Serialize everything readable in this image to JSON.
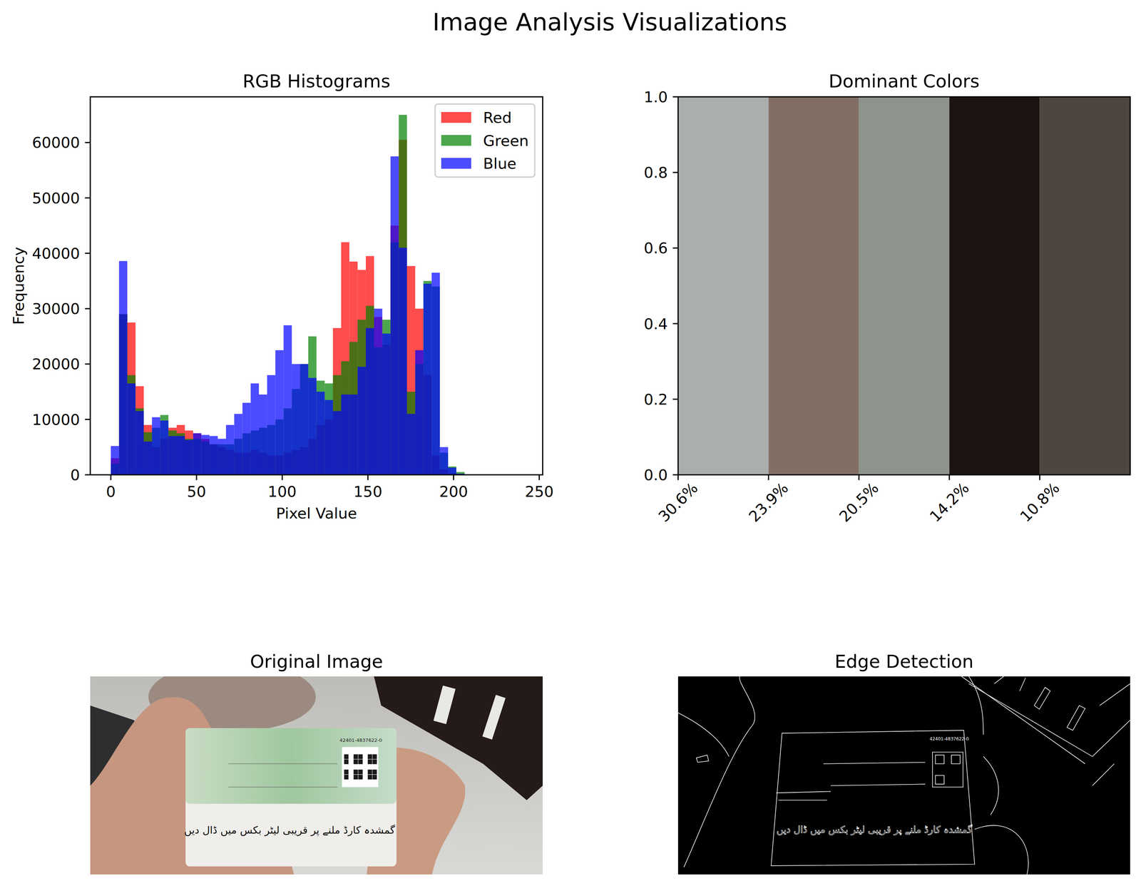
{
  "title": "Image Analysis Visualizations",
  "chart_data": [
    {
      "type": "histogram",
      "title": "RGB Histograms",
      "x_label": "Pixel Value",
      "y_label": "Frequency",
      "bins": [
        0,
        4.8,
        9.6,
        14.4,
        19.2,
        24,
        28.8,
        33.6,
        38.4,
        43.2,
        48,
        52.8,
        57.6,
        62.4,
        67.2,
        72,
        76.8,
        81.6,
        86.4,
        91.2,
        96,
        100.8,
        105.6,
        110.4,
        115.2,
        120,
        124.8,
        129.6,
        134.4,
        139.2,
        144,
        148.8,
        153.6,
        158.4,
        163.2,
        168,
        172.8,
        177.6,
        182.4,
        187.2,
        192,
        196.8,
        201.6,
        206.4,
        211.2,
        216,
        220.8,
        225.6,
        230.4,
        235.2,
        240
      ],
      "series": [
        {
          "name": "Red",
          "color": "#ff0000",
          "values": [
            3000,
            29000,
            27500,
            16000,
            9000,
            5000,
            6500,
            8500,
            9000,
            8000,
            7500,
            6500,
            5500,
            5000,
            4500,
            4000,
            4000,
            4500,
            4000,
            3500,
            3500,
            4000,
            4500,
            5000,
            6500,
            9000,
            10000,
            26500,
            42000,
            38500,
            37000,
            39500,
            28500,
            23500,
            45000,
            60500,
            37700,
            30000,
            18000,
            3500,
            1000,
            300,
            0,
            0,
            0,
            0,
            0,
            0,
            0,
            0
          ]
        },
        {
          "name": "Green",
          "color": "#008000",
          "values": [
            2000,
            29000,
            18000,
            12000,
            7700,
            8500,
            10800,
            8000,
            7500,
            6500,
            6500,
            6000,
            5500,
            5500,
            5500,
            6500,
            7500,
            8000,
            8500,
            9000,
            10000,
            12000,
            15500,
            20000,
            25000,
            17000,
            16500,
            18000,
            20500,
            24000,
            28000,
            30500,
            23000,
            28000,
            42000,
            65000,
            15000,
            20000,
            35000,
            34000,
            4000,
            1500,
            500,
            0,
            0,
            0,
            0,
            0,
            0,
            0
          ]
        },
        {
          "name": "Blue",
          "color": "#0000ff",
          "values": [
            5200,
            38600,
            16500,
            11500,
            6000,
            10400,
            9800,
            7000,
            7000,
            6300,
            7500,
            7200,
            7000,
            6500,
            9000,
            11000,
            13000,
            16500,
            14500,
            18000,
            22500,
            27000,
            20000,
            20000,
            17500,
            15000,
            13500,
            11500,
            14500,
            14500,
            19500,
            26500,
            30000,
            25500,
            57500,
            41000,
            11000,
            22500,
            34500,
            36500,
            5000,
            1300,
            200,
            0,
            0,
            0,
            0,
            0,
            0,
            0
          ]
        }
      ],
      "xlim": [
        -12,
        252
      ],
      "xticks": [
        0,
        50,
        100,
        150,
        200,
        250
      ],
      "ylim": [
        0,
        68250
      ],
      "yticks": [
        0,
        10000,
        20000,
        30000,
        40000,
        50000,
        60000
      ],
      "legend": "upper-right",
      "grid": false
    },
    {
      "type": "bar",
      "title": "Dominant Colors",
      "categories": [
        "30.6%",
        "23.9%",
        "20.5%",
        "14.2%",
        "10.8%"
      ],
      "values": [
        1,
        1,
        1,
        1,
        1
      ],
      "colors": [
        "#aaaeae",
        "#826e64",
        "#8e938d",
        "#1c1413",
        "#4f4540"
      ],
      "xlim": [
        0,
        5
      ],
      "ylim": [
        0,
        1
      ],
      "yticks": [
        {
          "value": 0,
          "label": "0.0"
        },
        0.2,
        0.4,
        0.6,
        0.8,
        {
          "value": 1,
          "label": "1.0"
        }
      ],
      "grid": false
    }
  ],
  "images": [
    {
      "title": "Original Image",
      "card_number": "42401-4837622-0",
      "card_text": "گمشدہ کارڈ ملنے پر قریبی لیٹر بکس میں ڈال دیں"
    },
    {
      "title": "Edge Detection"
    }
  ]
}
